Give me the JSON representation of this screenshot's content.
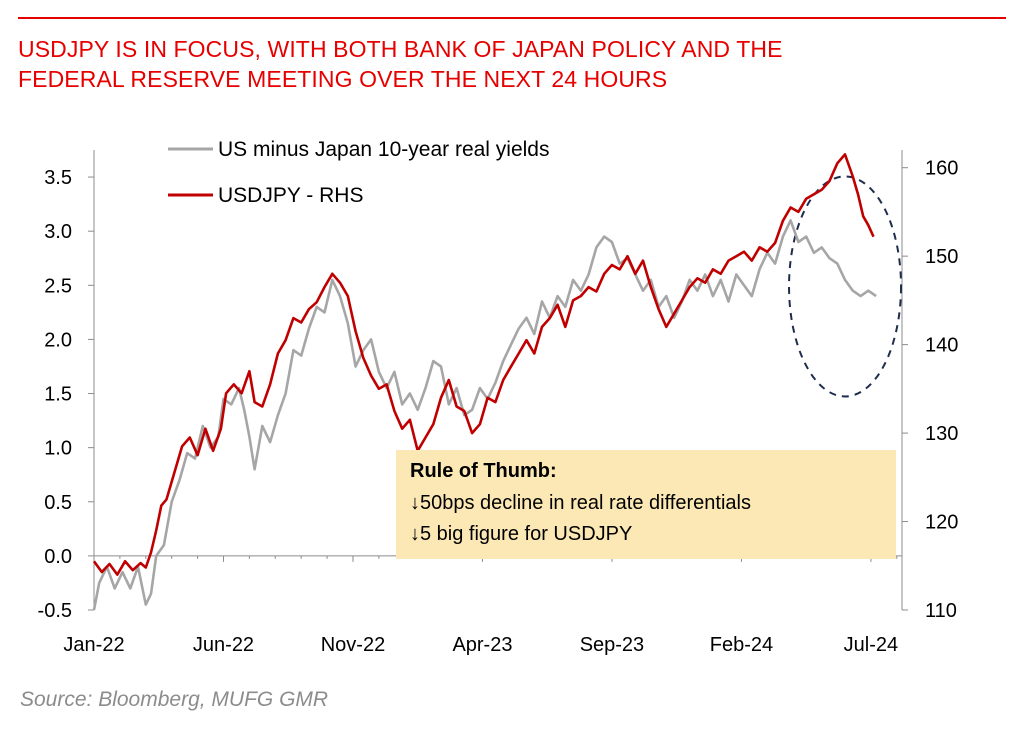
{
  "header": {
    "title_line1": "USDJPY IS IN FOCUS, WITH BOTH BANK OF JAPAN POLICY AND THE",
    "title_line2": "FEDERAL RESERVE MEETING OVER THE NEXT 24 HOURS"
  },
  "source": "Source: Bloomberg, MUFG GMR",
  "callout": {
    "heading": "Rule of Thumb:",
    "line1": "↓50bps decline in real rate differentials",
    "line2": "↓5 big figure for USDJPY",
    "background": "#fbe8b5"
  },
  "colors": {
    "title": "#e60000",
    "series_real_yields": "#a6a6a6",
    "series_usdjpy": "#c00000",
    "highlight_ellipse": "#1f2d4d"
  },
  "chart_data": {
    "type": "line",
    "title": "USDJPY IS IN FOCUS, WITH BOTH BANK OF JAPAN POLICY AND THE FEDERAL RESERVE MEETING OVER THE NEXT 24 HOURS",
    "xlabel": "",
    "ylabel": "",
    "x_start": "2022-01",
    "x_end": "2024-07",
    "x_ticks": [
      {
        "label": "Jan-22",
        "month": 0
      },
      {
        "label": "Jun-22",
        "month": 5
      },
      {
        "label": "Nov-22",
        "month": 10
      },
      {
        "label": "Apr-23",
        "month": 15
      },
      {
        "label": "Sep-23",
        "month": 20
      },
      {
        "label": "Feb-24",
        "month": 25
      },
      {
        "label": "Jul-24",
        "month": 30
      }
    ],
    "ylim_left": [
      -0.5,
      3.75
    ],
    "yticks_left": [
      -0.5,
      0.0,
      0.5,
      1.0,
      1.5,
      2.0,
      2.5,
      3.0,
      3.5
    ],
    "ytick_labels_left": [
      "-0.5",
      "0.0",
      "0.5",
      "1.0",
      "1.5",
      "2.0",
      "2.5",
      "3.0",
      "3.5"
    ],
    "ylim_right": [
      110,
      162
    ],
    "yticks_right": [
      110,
      120,
      130,
      140,
      150,
      160
    ],
    "ytick_labels_right": [
      "110",
      "120",
      "130",
      "140",
      "150",
      "160"
    ],
    "legend_position": "top-left",
    "series": [
      {
        "name": "US minus Japan 10-year real yields",
        "axis": "left",
        "color": "#a6a6a6",
        "points": [
          [
            0.0,
            -0.5
          ],
          [
            0.2,
            -0.25
          ],
          [
            0.5,
            -0.1
          ],
          [
            0.8,
            -0.3
          ],
          [
            1.1,
            -0.15
          ],
          [
            1.4,
            -0.3
          ],
          [
            1.7,
            -0.1
          ],
          [
            2.0,
            -0.45
          ],
          [
            2.2,
            -0.35
          ],
          [
            2.4,
            0.0
          ],
          [
            2.7,
            0.1
          ],
          [
            3.0,
            0.5
          ],
          [
            3.3,
            0.7
          ],
          [
            3.6,
            0.95
          ],
          [
            3.9,
            0.9
          ],
          [
            4.2,
            1.2
          ],
          [
            4.5,
            1.0
          ],
          [
            4.8,
            1.1
          ],
          [
            5.0,
            1.45
          ],
          [
            5.3,
            1.4
          ],
          [
            5.6,
            1.55
          ],
          [
            5.8,
            1.35
          ],
          [
            6.0,
            1.1
          ],
          [
            6.2,
            0.8
          ],
          [
            6.5,
            1.2
          ],
          [
            6.8,
            1.05
          ],
          [
            7.1,
            1.3
          ],
          [
            7.4,
            1.5
          ],
          [
            7.7,
            1.9
          ],
          [
            8.0,
            1.85
          ],
          [
            8.3,
            2.1
          ],
          [
            8.6,
            2.3
          ],
          [
            8.9,
            2.25
          ],
          [
            9.2,
            2.55
          ],
          [
            9.5,
            2.4
          ],
          [
            9.8,
            2.15
          ],
          [
            10.1,
            1.75
          ],
          [
            10.4,
            1.9
          ],
          [
            10.7,
            2.0
          ],
          [
            11.0,
            1.7
          ],
          [
            11.3,
            1.55
          ],
          [
            11.6,
            1.7
          ],
          [
            11.9,
            1.4
          ],
          [
            12.2,
            1.5
          ],
          [
            12.5,
            1.35
          ],
          [
            12.8,
            1.55
          ],
          [
            13.1,
            1.8
          ],
          [
            13.4,
            1.75
          ],
          [
            13.7,
            1.4
          ],
          [
            14.0,
            1.55
          ],
          [
            14.3,
            1.3
          ],
          [
            14.6,
            1.35
          ],
          [
            14.9,
            1.55
          ],
          [
            15.2,
            1.45
          ],
          [
            15.5,
            1.6
          ],
          [
            15.8,
            1.8
          ],
          [
            16.1,
            1.95
          ],
          [
            16.4,
            2.1
          ],
          [
            16.7,
            2.2
          ],
          [
            17.0,
            2.05
          ],
          [
            17.3,
            2.35
          ],
          [
            17.6,
            2.2
          ],
          [
            17.9,
            2.4
          ],
          [
            18.2,
            2.3
          ],
          [
            18.5,
            2.55
          ],
          [
            18.8,
            2.45
          ],
          [
            19.1,
            2.6
          ],
          [
            19.4,
            2.85
          ],
          [
            19.7,
            2.95
          ],
          [
            20.0,
            2.9
          ],
          [
            20.3,
            2.7
          ],
          [
            20.6,
            2.75
          ],
          [
            20.9,
            2.6
          ],
          [
            21.2,
            2.45
          ],
          [
            21.5,
            2.55
          ],
          [
            21.8,
            2.3
          ],
          [
            22.1,
            2.4
          ],
          [
            22.4,
            2.2
          ],
          [
            22.7,
            2.35
          ],
          [
            23.0,
            2.55
          ],
          [
            23.3,
            2.45
          ],
          [
            23.6,
            2.6
          ],
          [
            23.9,
            2.4
          ],
          [
            24.2,
            2.55
          ],
          [
            24.5,
            2.35
          ],
          [
            24.8,
            2.6
          ],
          [
            25.1,
            2.5
          ],
          [
            25.4,
            2.4
          ],
          [
            25.7,
            2.65
          ],
          [
            26.0,
            2.8
          ],
          [
            26.3,
            2.7
          ],
          [
            26.6,
            2.95
          ],
          [
            26.9,
            3.1
          ],
          [
            27.2,
            2.9
          ],
          [
            27.5,
            2.95
          ],
          [
            27.8,
            2.8
          ],
          [
            28.1,
            2.85
          ],
          [
            28.4,
            2.75
          ],
          [
            28.7,
            2.7
          ],
          [
            29.0,
            2.55
          ],
          [
            29.3,
            2.45
          ],
          [
            29.6,
            2.4
          ],
          [
            29.9,
            2.45
          ],
          [
            30.2,
            2.4
          ]
        ]
      },
      {
        "name": "USDJPY - RHS",
        "axis": "right",
        "color": "#c00000",
        "points": [
          [
            0.0,
            115.5
          ],
          [
            0.3,
            114.3
          ],
          [
            0.6,
            115.2
          ],
          [
            0.9,
            114.0
          ],
          [
            1.2,
            115.5
          ],
          [
            1.5,
            114.5
          ],
          [
            1.8,
            115.3
          ],
          [
            2.0,
            114.8
          ],
          [
            2.2,
            116.5
          ],
          [
            2.4,
            119.0
          ],
          [
            2.6,
            121.8
          ],
          [
            2.8,
            122.5
          ],
          [
            3.1,
            125.5
          ],
          [
            3.4,
            128.5
          ],
          [
            3.7,
            129.5
          ],
          [
            4.0,
            127.5
          ],
          [
            4.3,
            130.5
          ],
          [
            4.6,
            128.0
          ],
          [
            4.9,
            130.5
          ],
          [
            5.1,
            134.5
          ],
          [
            5.4,
            135.5
          ],
          [
            5.7,
            134.5
          ],
          [
            6.0,
            137.0
          ],
          [
            6.2,
            133.5
          ],
          [
            6.5,
            133.0
          ],
          [
            6.8,
            135.5
          ],
          [
            7.1,
            139.0
          ],
          [
            7.4,
            140.5
          ],
          [
            7.7,
            143.0
          ],
          [
            8.0,
            142.5
          ],
          [
            8.3,
            144.0
          ],
          [
            8.6,
            144.8
          ],
          [
            8.9,
            146.5
          ],
          [
            9.2,
            148.0
          ],
          [
            9.5,
            147.0
          ],
          [
            9.8,
            145.5
          ],
          [
            10.1,
            141.5
          ],
          [
            10.4,
            138.5
          ],
          [
            10.7,
            136.5
          ],
          [
            11.0,
            135.0
          ],
          [
            11.3,
            135.5
          ],
          [
            11.6,
            132.5
          ],
          [
            11.9,
            130.5
          ],
          [
            12.2,
            131.5
          ],
          [
            12.5,
            128.0
          ],
          [
            12.8,
            129.5
          ],
          [
            13.1,
            131.0
          ],
          [
            13.4,
            134.0
          ],
          [
            13.7,
            136.0
          ],
          [
            14.0,
            133.0
          ],
          [
            14.3,
            132.5
          ],
          [
            14.6,
            130.0
          ],
          [
            14.9,
            131.0
          ],
          [
            15.2,
            134.0
          ],
          [
            15.5,
            133.5
          ],
          [
            15.8,
            136.0
          ],
          [
            16.1,
            137.5
          ],
          [
            16.4,
            139.0
          ],
          [
            16.7,
            140.5
          ],
          [
            17.0,
            139.0
          ],
          [
            17.3,
            142.0
          ],
          [
            17.6,
            143.0
          ],
          [
            17.9,
            144.5
          ],
          [
            18.2,
            142.0
          ],
          [
            18.5,
            145.0
          ],
          [
            18.8,
            145.5
          ],
          [
            19.1,
            146.5
          ],
          [
            19.4,
            146.0
          ],
          [
            19.7,
            148.0
          ],
          [
            20.0,
            149.0
          ],
          [
            20.3,
            148.5
          ],
          [
            20.6,
            150.0
          ],
          [
            20.9,
            148.0
          ],
          [
            21.2,
            149.5
          ],
          [
            21.5,
            146.5
          ],
          [
            21.8,
            144.0
          ],
          [
            22.1,
            142.0
          ],
          [
            22.4,
            143.5
          ],
          [
            22.7,
            145.0
          ],
          [
            23.0,
            146.5
          ],
          [
            23.3,
            147.5
          ],
          [
            23.6,
            147.0
          ],
          [
            23.9,
            148.5
          ],
          [
            24.2,
            148.0
          ],
          [
            24.5,
            149.5
          ],
          [
            24.8,
            150.0
          ],
          [
            25.1,
            150.5
          ],
          [
            25.4,
            149.5
          ],
          [
            25.7,
            151.0
          ],
          [
            26.0,
            150.5
          ],
          [
            26.3,
            151.5
          ],
          [
            26.6,
            154.0
          ],
          [
            26.9,
            155.5
          ],
          [
            27.2,
            155.0
          ],
          [
            27.5,
            156.5
          ],
          [
            27.8,
            157.0
          ],
          [
            28.1,
            157.5
          ],
          [
            28.4,
            158.5
          ],
          [
            28.7,
            160.5
          ],
          [
            29.0,
            161.5
          ],
          [
            29.3,
            159.0
          ],
          [
            29.5,
            157.0
          ],
          [
            29.7,
            154.5
          ],
          [
            29.9,
            153.5
          ],
          [
            30.1,
            152.2
          ]
        ]
      }
    ],
    "annotations": [
      {
        "type": "ellipse",
        "style": "dashed",
        "target": "latest period (mid-2024)"
      }
    ]
  }
}
